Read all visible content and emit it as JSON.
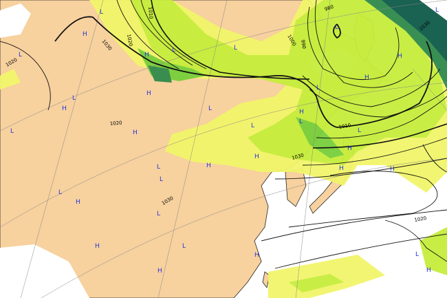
{
  "map": {
    "colors": {
      "land": "#f7d19e",
      "sea": "#ffffff",
      "precip_light": "#f2f56a",
      "precip_moderate": "#c6ee3c",
      "precip_heavy": "#78cf3a",
      "precip_very_heavy": "#2f8a4a",
      "precip_extreme": "#0e5a48",
      "isobar": "#111111",
      "pressure_center": "#2233dd"
    },
    "isobar_labels": [
      "1030",
      "1020",
      "1010",
      "1020",
      "1030",
      "1000",
      "990",
      "980",
      "1030",
      "1010",
      "1030",
      "1020",
      "1020"
    ],
    "pressure_centers": [
      "H",
      "L",
      "L",
      "H",
      "L",
      "H",
      "L",
      "H",
      "H",
      "L",
      "L",
      "L",
      "H",
      "L",
      "H",
      "L",
      "H",
      "L",
      "H",
      "L",
      "H",
      "L",
      "L",
      "H",
      "L",
      "H",
      "L",
      "L",
      "H",
      "H",
      "H",
      "L",
      "L",
      "H",
      "H",
      "L",
      "H"
    ]
  }
}
